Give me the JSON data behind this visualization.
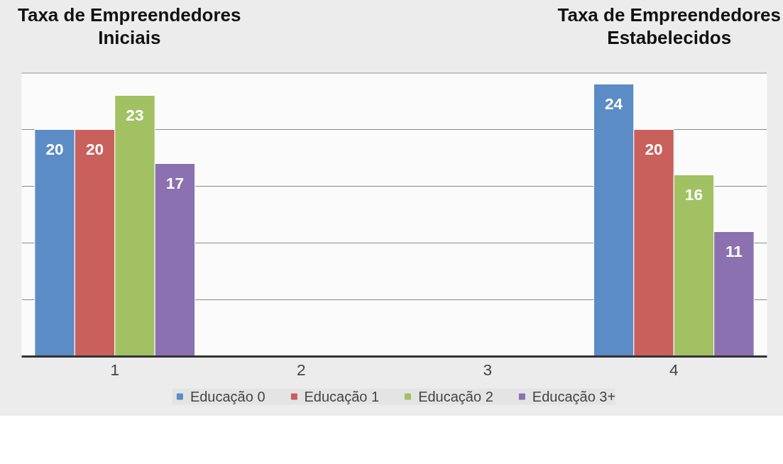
{
  "chart_data": {
    "type": "bar",
    "categories": [
      "1",
      "2",
      "3",
      "4"
    ],
    "series": [
      {
        "name": "Educação 0",
        "color": "#5b8cc6",
        "values": [
          20,
          null,
          null,
          24
        ]
      },
      {
        "name": "Educação 1",
        "color": "#c9605c",
        "values": [
          20,
          null,
          null,
          20
        ]
      },
      {
        "name": "Educação 2",
        "color": "#a2c163",
        "values": [
          23,
          null,
          null,
          16
        ]
      },
      {
        "name": "Educação 3+",
        "color": "#8b71b0",
        "values": [
          17,
          null,
          null,
          11
        ]
      }
    ],
    "ylim": [
      0,
      25
    ],
    "yticks": [
      {
        "value": 0,
        "label": null
      },
      {
        "value": 5,
        "label": null
      },
      {
        "value": 10,
        "label": null
      },
      {
        "value": 15,
        "label": null
      },
      {
        "value": 20,
        "label": null
      },
      {
        "value": 25,
        "label": null
      }
    ],
    "grid": "y",
    "legend": "bottom",
    "data_labels": true,
    "tick_labels": "x",
    "annotations": [
      "Taxa de Empreendedores Iniciais",
      "Taxa de Empreendedores Estabelecidos"
    ]
  }
}
